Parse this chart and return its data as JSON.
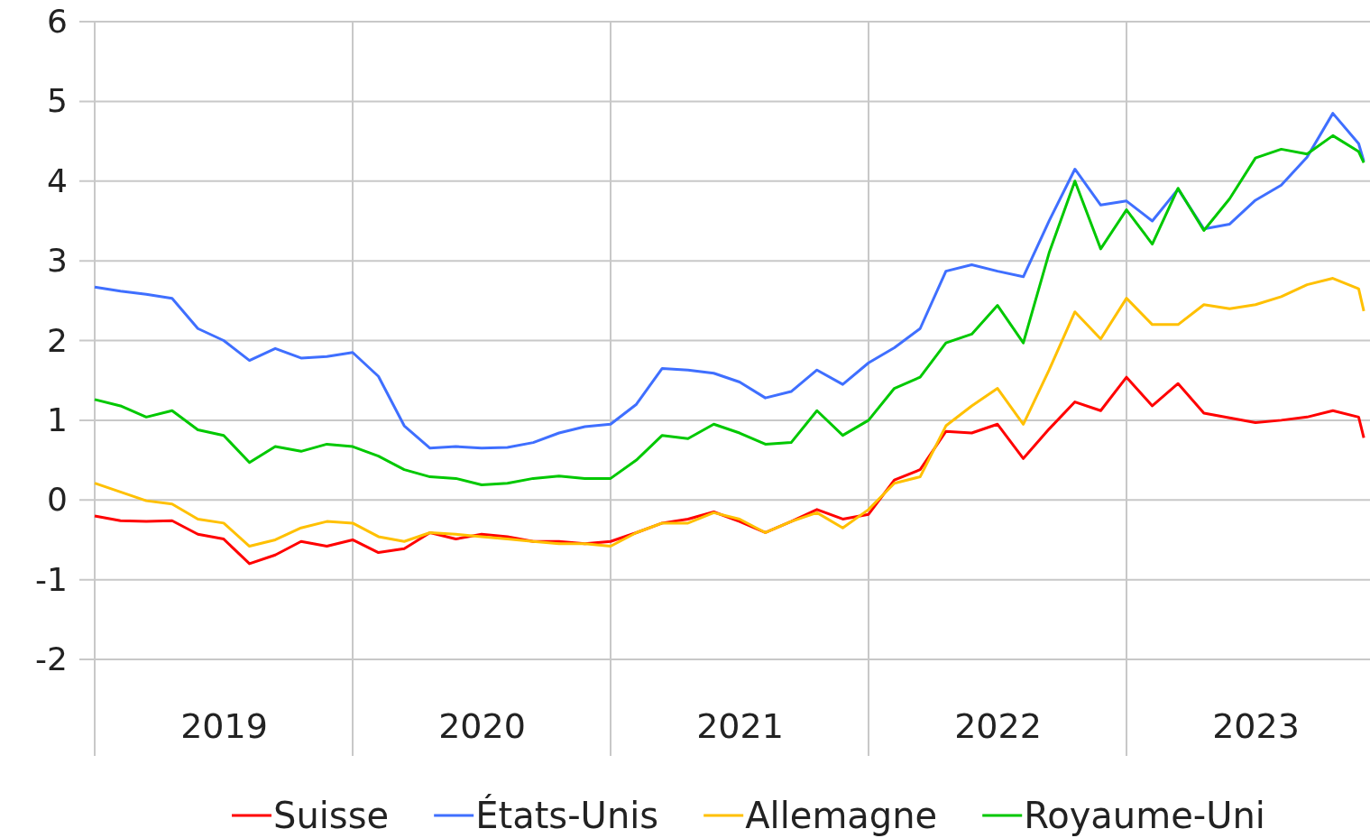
{
  "chart_data": {
    "type": "line",
    "x": [
      2019.0,
      2019.1,
      2019.2,
      2019.3,
      2019.4,
      2019.5,
      2019.6,
      2019.7,
      2019.8,
      2019.9,
      2020.0,
      2020.1,
      2020.2,
      2020.3,
      2020.4,
      2020.5,
      2020.6,
      2020.7,
      2020.8,
      2020.9,
      2021.0,
      2021.1,
      2021.2,
      2021.3,
      2021.4,
      2021.5,
      2021.6,
      2021.7,
      2021.8,
      2021.9,
      2022.0,
      2022.1,
      2022.2,
      2022.3,
      2022.4,
      2022.5,
      2022.6,
      2022.7,
      2022.8,
      2022.9,
      2023.0,
      2023.1,
      2023.2,
      2023.3,
      2023.4,
      2023.5,
      2023.6,
      2023.7,
      2023.8,
      2023.9,
      2023.92
    ],
    "series": [
      {
        "name": "Suisse",
        "color": "#ff0000",
        "values": [
          -0.2,
          -0.26,
          -0.27,
          -0.26,
          -0.43,
          -0.49,
          -0.8,
          -0.69,
          -0.52,
          -0.58,
          -0.5,
          -0.66,
          -0.61,
          -0.41,
          -0.49,
          -0.43,
          -0.46,
          -0.52,
          -0.52,
          -0.55,
          -0.52,
          -0.41,
          -0.29,
          -0.24,
          -0.15,
          -0.27,
          -0.41,
          -0.27,
          -0.12,
          -0.24,
          -0.18,
          0.25,
          0.38,
          0.86,
          0.84,
          0.95,
          0.52,
          0.89,
          1.23,
          1.12,
          1.54,
          1.18,
          1.46,
          1.09,
          1.03,
          0.97,
          1.0,
          1.04,
          1.12,
          1.04,
          0.78
        ]
      },
      {
        "name": "États-Unis",
        "color": "#3f6fff",
        "values": [
          2.67,
          2.62,
          2.58,
          2.53,
          2.15,
          2.0,
          1.75,
          1.9,
          1.78,
          1.8,
          1.85,
          1.55,
          0.93,
          0.65,
          0.67,
          0.65,
          0.66,
          0.72,
          0.84,
          0.92,
          0.95,
          1.2,
          1.65,
          1.63,
          1.59,
          1.48,
          1.28,
          1.36,
          1.63,
          1.45,
          1.72,
          1.91,
          2.15,
          2.87,
          2.95,
          2.87,
          2.8,
          3.5,
          4.15,
          3.7,
          3.75,
          3.5,
          3.9,
          3.4,
          3.46,
          3.76,
          3.95,
          4.3,
          4.85,
          4.47,
          4.25
        ]
      },
      {
        "name": "Allemagne",
        "color": "#ffc000",
        "values": [
          0.21,
          0.1,
          -0.01,
          -0.05,
          -0.24,
          -0.29,
          -0.58,
          -0.5,
          -0.35,
          -0.27,
          -0.29,
          -0.46,
          -0.52,
          -0.41,
          -0.43,
          -0.46,
          -0.49,
          -0.52,
          -0.55,
          -0.55,
          -0.58,
          -0.41,
          -0.29,
          -0.29,
          -0.16,
          -0.24,
          -0.41,
          -0.27,
          -0.16,
          -0.35,
          -0.12,
          0.21,
          0.29,
          0.93,
          1.18,
          1.4,
          0.95,
          1.63,
          2.36,
          2.02,
          2.53,
          2.2,
          2.2,
          2.45,
          2.4,
          2.45,
          2.55,
          2.7,
          2.78,
          2.65,
          2.37
        ]
      },
      {
        "name": "Royaume-Uni",
        "color": "#00c800",
        "values": [
          1.26,
          1.18,
          1.04,
          1.12,
          0.88,
          0.81,
          0.47,
          0.67,
          0.61,
          0.7,
          0.67,
          0.55,
          0.38,
          0.29,
          0.27,
          0.19,
          0.21,
          0.27,
          0.3,
          0.27,
          0.27,
          0.5,
          0.81,
          0.77,
          0.95,
          0.84,
          0.7,
          0.72,
          1.12,
          0.81,
          1.0,
          1.4,
          1.54,
          1.97,
          2.08,
          2.44,
          1.97,
          3.1,
          4.0,
          3.15,
          3.64,
          3.21,
          3.91,
          3.38,
          3.78,
          4.29,
          4.4,
          4.34,
          4.57,
          4.37,
          4.23
        ]
      }
    ],
    "xlim": [
      2019,
      2023.93
    ],
    "xticks": [
      {
        "value": 2019,
        "label": null
      },
      {
        "value": 2019.5,
        "label": "2019"
      },
      {
        "value": 2020,
        "label": null
      },
      {
        "value": 2020.5,
        "label": "2020"
      },
      {
        "value": 2021,
        "label": null
      },
      {
        "value": 2021.5,
        "label": "2021"
      },
      {
        "value": 2022,
        "label": null
      },
      {
        "value": 2022.5,
        "label": "2022"
      },
      {
        "value": 2023,
        "label": null
      },
      {
        "value": 2023.5,
        "label": "2023"
      }
    ],
    "ylim": [
      -2,
      6
    ],
    "yticks": [
      -2,
      -1,
      0,
      1,
      2,
      3,
      4,
      5,
      6
    ],
    "grid": true,
    "legend": "bottom",
    "marker": "none",
    "line_style": "solid"
  }
}
